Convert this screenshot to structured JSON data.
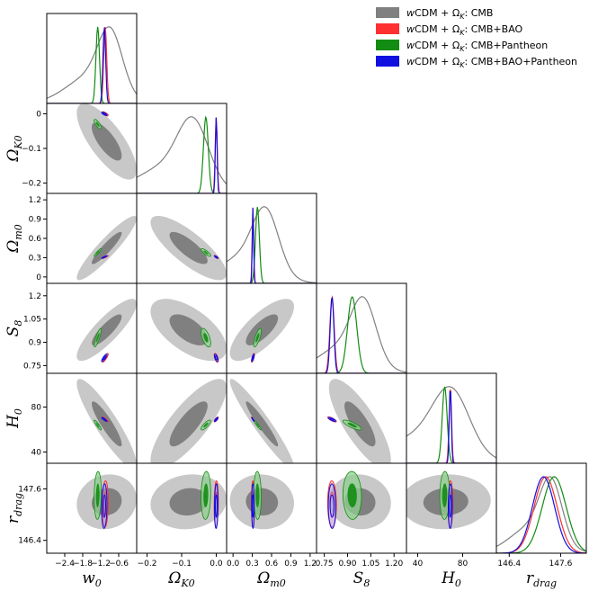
{
  "chart_data": {
    "type": "triangle",
    "title": "",
    "parameters": [
      {
        "name": "w0",
        "label_base": "w",
        "label_sub": "0",
        "range": [
          -3.0,
          0.0
        ],
        "ticks": [
          -2.4,
          -1.8,
          -1.2,
          -0.6
        ],
        "tick_labels": [
          "−2.4",
          "−1.8",
          "−1.2",
          "−0.6"
        ]
      },
      {
        "name": "OmegaK0",
        "label_base": "Ω",
        "label_sub": "K0",
        "range": [
          -0.23,
          0.03
        ],
        "ticks": [
          -0.2,
          -0.1,
          0.0
        ],
        "tick_labels": [
          "−0.2",
          "−0.1",
          "0.0"
        ],
        "y_ticks": [
          -0.2,
          -0.1,
          0.0
        ],
        "y_tick_labels": [
          "−0.2",
          "−0.1",
          "0"
        ]
      },
      {
        "name": "Omegam0",
        "label_base": "Ω",
        "label_sub": "m0",
        "range": [
          -0.1,
          1.3
        ],
        "ticks": [
          0.0,
          0.3,
          0.6,
          0.9,
          1.2
        ],
        "tick_labels": [
          "0.0",
          "0.3",
          "0.6",
          "0.9",
          "1.2"
        ],
        "y_ticks": [
          0.0,
          0.3,
          0.6,
          0.9,
          1.2
        ],
        "y_tick_labels": [
          "0",
          "0.3",
          "0.6",
          "0.9",
          "1.2"
        ]
      },
      {
        "name": "S8",
        "label_base": "S",
        "label_sub": "8",
        "range": [
          0.7,
          1.28
        ],
        "ticks": [
          0.75,
          0.9,
          1.05,
          1.2
        ],
        "tick_labels": [
          "0.75",
          "0.90",
          "1.05",
          "1.20"
        ],
        "y_ticks": [
          0.75,
          0.9,
          1.05,
          1.2
        ],
        "y_tick_labels": [
          "0.75",
          "0.9",
          "1.05",
          "1.2"
        ]
      },
      {
        "name": "H0",
        "label_base": "H",
        "label_sub": "0",
        "range": [
          30,
          110
        ],
        "ticks": [
          40,
          80
        ],
        "tick_labels": [
          "40",
          "80"
        ],
        "y_ticks": [
          40,
          80
        ],
        "y_tick_labels": [
          "40",
          "80"
        ]
      },
      {
        "name": "rdrag",
        "label_base": "r",
        "label_sub": "drag",
        "range": [
          146.1,
          148.2
        ],
        "ticks": [
          146.4,
          147.6
        ],
        "tick_labels": [
          "146.4",
          "147.6"
        ],
        "y_ticks": [
          146.4,
          147.6
        ],
        "y_tick_labels": [
          "146.4",
          "147.6"
        ]
      }
    ],
    "series": [
      {
        "name": "CMB",
        "legend_prefix": "w",
        "legend_text": "CDM + Ω",
        "legend_sub": "K",
        "legend_suffix": ": CMB",
        "color": "#808080",
        "outer_color": "#c8c8c8",
        "fill": true,
        "mean": [
          -1.0,
          -0.08,
          0.45,
          0.98,
          65,
          147.3
        ],
        "sigma": [
          0.5,
          0.055,
          0.25,
          0.1,
          20,
          0.32
        ]
      },
      {
        "name": "CMB+BAO",
        "legend_prefix": "w",
        "legend_text": "CDM + Ω",
        "legend_sub": "K",
        "legend_suffix": ": CMB+BAO",
        "color": "#ff3030",
        "outer_color": "#ff9b9b",
        "fill": false,
        "mean": [
          -1.05,
          0.0,
          0.31,
          0.8,
          69,
          147.25
        ],
        "sigma": [
          0.05,
          0.003,
          0.012,
          0.014,
          1.1,
          0.27
        ]
      },
      {
        "name": "CMB+Pantheon",
        "legend_prefix": "w",
        "legend_text": "CDM + Ω",
        "legend_sub": "K",
        "legend_suffix": ": CMB+Pantheon",
        "color": "#128c12",
        "outer_color": "#90d090",
        "fill": true,
        "mean": [
          -1.3,
          -0.03,
          0.38,
          0.93,
          64,
          147.45
        ],
        "sigma": [
          0.06,
          0.007,
          0.03,
          0.03,
          2.2,
          0.28
        ]
      },
      {
        "name": "CMB+BAO+Pantheon",
        "legend_prefix": "w",
        "legend_text": "CDM + Ω",
        "legend_sub": "K",
        "legend_suffix": ": CMB+BAO+Pantheon",
        "color": "#1010e0",
        "outer_color": "#8c8cf0",
        "fill": false,
        "mean": [
          -1.08,
          0.0,
          0.31,
          0.8,
          69,
          147.2
        ],
        "sigma": [
          0.045,
          0.0025,
          0.01,
          0.012,
          0.9,
          0.26
        ]
      }
    ],
    "legend_position": "top-right"
  }
}
